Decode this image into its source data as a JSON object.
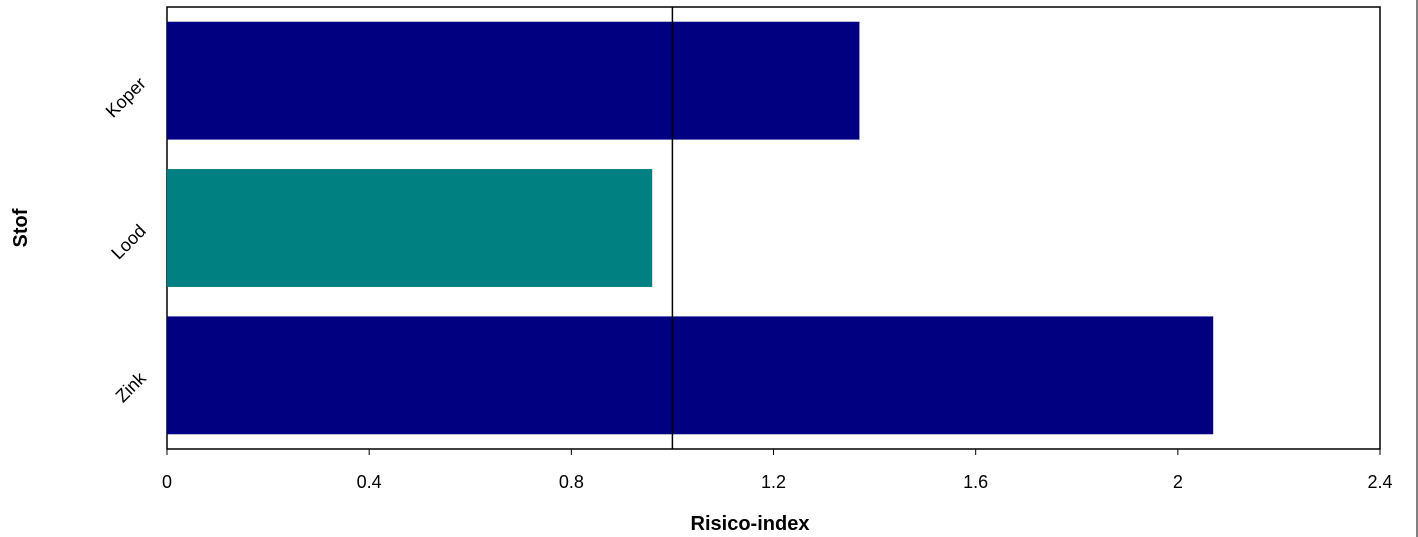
{
  "chart_data": {
    "type": "bar",
    "orientation": "horizontal",
    "title": "",
    "xlabel": "Risico-index",
    "ylabel": "Stof",
    "categories": [
      "Koper",
      "Lood",
      "Zink"
    ],
    "values": [
      1.37,
      0.96,
      2.07
    ],
    "bar_colors": [
      "#000080",
      "#008080",
      "#000080"
    ],
    "xlim": [
      0,
      2.4
    ],
    "x_ticks": [
      0,
      0.4,
      0.8,
      1.2,
      1.6,
      2,
      2.4
    ],
    "x_tick_labels": [
      "0",
      "0.4",
      "0.8",
      "1.2",
      "1.6",
      "2",
      "2.4"
    ],
    "reference_line": 1,
    "grid": false,
    "legend": "none"
  }
}
